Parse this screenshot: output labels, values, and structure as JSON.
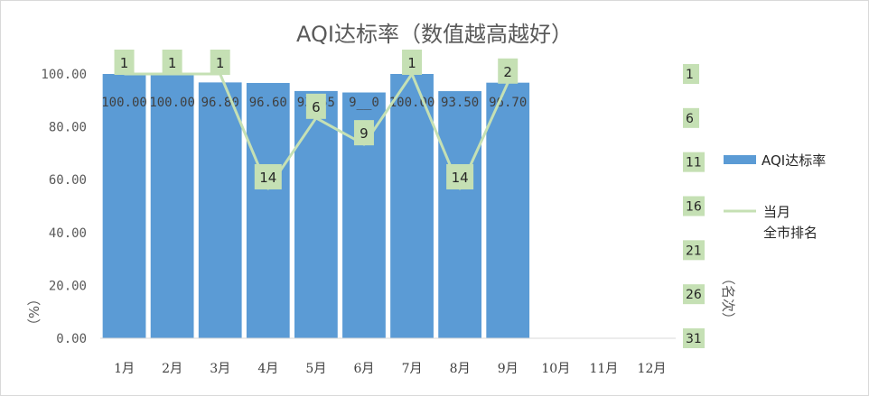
{
  "chart_data": {
    "type": "bar",
    "title": "AQI达标率（数值越高越好）",
    "categories": [
      "1月",
      "2月",
      "3月",
      "4月",
      "5月",
      "6月",
      "7月",
      "8月",
      "9月",
      "10月",
      "11月",
      "12月"
    ],
    "series": [
      {
        "name": "AQI达标率",
        "type": "bar",
        "axis": "left",
        "color": "#5b9bd5",
        "values": [
          100.0,
          100.0,
          96.8,
          96.6,
          93.55,
          93.0,
          100.0,
          93.5,
          96.7,
          null,
          null,
          null
        ],
        "labels": [
          "100.00",
          "100.00",
          "96.80",
          "96.60",
          "93.55",
          "9__0",
          "100.00",
          "93.50",
          "96.70",
          null,
          null,
          null
        ]
      },
      {
        "name": "当月全市排名",
        "legend_lines": [
          "当月",
          "全市排名"
        ],
        "type": "line",
        "axis": "right",
        "color": "#c5e0b4",
        "label_bg": "#c5e0b4",
        "values": [
          1,
          1,
          1,
          14,
          6,
          9,
          1,
          14,
          2,
          null,
          null,
          null
        ],
        "labels": [
          "1",
          "1",
          "1",
          "14",
          "6",
          "9",
          "1",
          "14",
          "2",
          null,
          null,
          null
        ]
      }
    ],
    "y_left": {
      "label": "（%）",
      "min": 0,
      "max": 100,
      "step": 20,
      "tick_labels": [
        "0.00",
        "20.00",
        "40.00",
        "60.00",
        "80.00",
        "100.00"
      ]
    },
    "y_right": {
      "label": "（名次）",
      "reversed": true,
      "min": 1,
      "max": 31,
      "tick_labels": [
        "1",
        "6",
        "11",
        "16",
        "21",
        "26",
        "31"
      ],
      "tick_bg": "#c5e0b4"
    },
    "grid": false,
    "legend_position": "right"
  }
}
